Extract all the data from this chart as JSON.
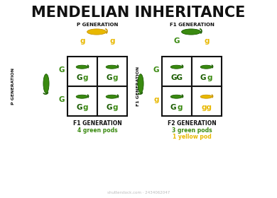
{
  "title": "MENDELIAN INHERITANCE",
  "title_fontsize": 15,
  "background_color": "#ffffff",
  "green_color": "#3a8a10",
  "yellow_color": "#e8b800",
  "dark_green": "#1a5c00",
  "text_color": "#111111",
  "left_square": {
    "top_label": "P GENERATION",
    "left_label": "P GENERATION",
    "col_alleles": [
      "g",
      "g"
    ],
    "col_allele_colors": [
      "#e8b800",
      "#e8b800"
    ],
    "row_alleles": [
      "G",
      "G"
    ],
    "row_allele_colors": [
      "#3a8a10",
      "#3a8a10"
    ],
    "cells": [
      [
        "Gg",
        "Gg"
      ],
      [
        "Gg",
        "Gg"
      ]
    ],
    "cell_pod_colors": [
      [
        "green",
        "green"
      ],
      [
        "green",
        "green"
      ]
    ],
    "top_pod_color": "yellow",
    "left_pod_color": "green",
    "bottom_label": "F1 GENERATION",
    "bottom_sub": "4 green pods",
    "bottom_sub_color": "#3a8a10"
  },
  "right_square": {
    "top_label": "F1 GENERATION",
    "left_label": "F1 GENERATION",
    "col_alleles": [
      "G",
      "g"
    ],
    "col_allele_colors": [
      "#3a8a10",
      "#e8b800"
    ],
    "row_alleles": [
      "G",
      "g"
    ],
    "row_allele_colors": [
      "#3a8a10",
      "#e8b800"
    ],
    "cells": [
      [
        "GG",
        "Gg"
      ],
      [
        "Gg",
        "gg"
      ]
    ],
    "cell_pod_colors": [
      [
        "green",
        "green"
      ],
      [
        "green",
        "yellow"
      ]
    ],
    "top_pod_color": "green",
    "left_pod_color": "green",
    "bottom_label": "F2 GENERATION",
    "bottom_sub": "3 green pods",
    "bottom_sub2": "1 yellow pod",
    "bottom_sub_color": "#3a8a10",
    "bottom_sub2_color": "#e8b800"
  },
  "watermark": "shutterstock.com · 2434062047"
}
